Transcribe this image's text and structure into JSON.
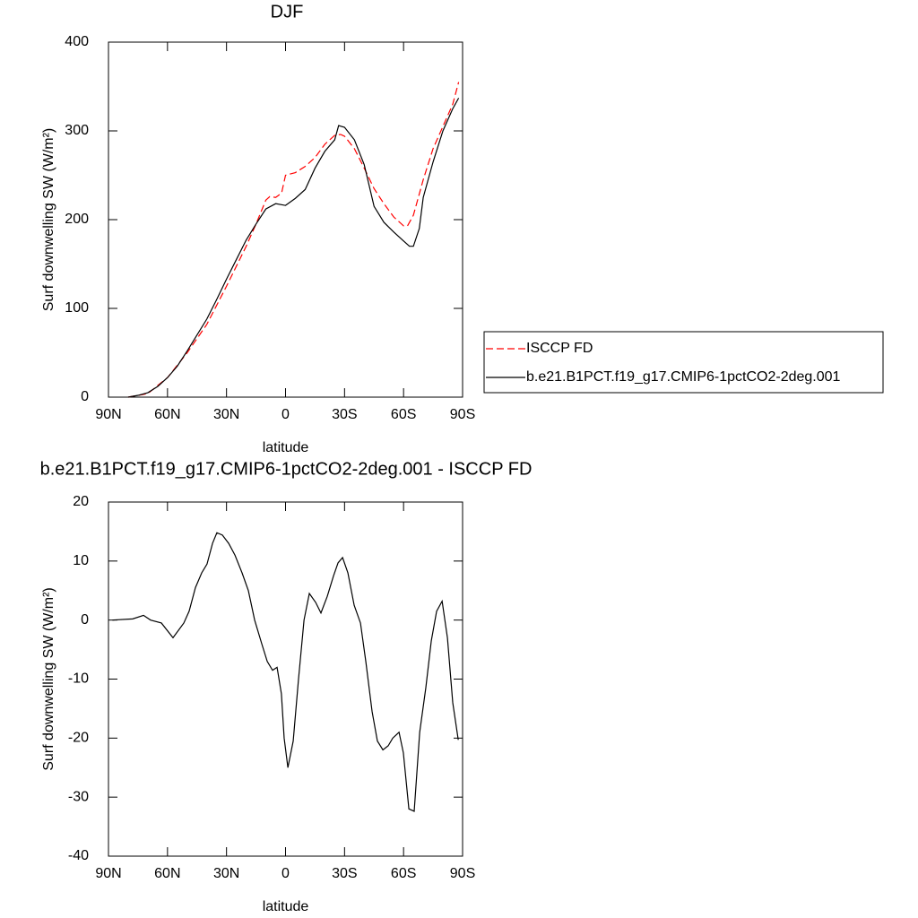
{
  "chart_data": [
    {
      "type": "line",
      "title": "DJF",
      "xlabel": "latitude",
      "ylabel": "Surf downwelling SW (W/m²)",
      "xlim": [
        90,
        -90
      ],
      "ylim": [
        0,
        400
      ],
      "xticks": [
        {
          "value": 90,
          "label": "90N"
        },
        {
          "value": 60,
          "label": "60N"
        },
        {
          "value": 30,
          "label": "30N"
        },
        0,
        {
          "value": -30,
          "label": "30S"
        },
        {
          "value": -60,
          "label": "60S"
        },
        {
          "value": -90,
          "label": "90S"
        }
      ],
      "yticks": [
        0,
        100,
        200,
        300,
        400
      ],
      "legend": "right",
      "series": [
        {
          "name": "ISCCP FD",
          "color": "#ff0000",
          "style": "dashed",
          "x": [
            80,
            70,
            60,
            50,
            40,
            30,
            20,
            15,
            10,
            8,
            5,
            2,
            0,
            -5,
            -10,
            -15,
            -20,
            -25,
            -28,
            -30,
            -35,
            -40,
            -45,
            -50,
            -55,
            -60,
            -62,
            -65,
            -70,
            -75,
            -80,
            -85,
            -88
          ],
          "values": [
            0,
            4,
            22,
            50,
            82,
            125,
            170,
            195,
            222,
            226,
            225,
            230,
            250,
            253,
            260,
            270,
            285,
            295,
            296,
            294,
            280,
            258,
            235,
            218,
            203,
            193,
            193,
            205,
            245,
            280,
            305,
            330,
            355
          ]
        },
        {
          "name": "b.e21.B1PCT.f19_g17.CMIP6-1pctCO2-2deg.001",
          "color": "#000000",
          "style": "solid",
          "x": [
            80,
            75,
            70,
            65,
            60,
            55,
            50,
            45,
            40,
            35,
            30,
            25,
            20,
            15,
            10,
            5,
            0,
            -5,
            -10,
            -15,
            -20,
            -25,
            -27,
            -30,
            -35,
            -40,
            -45,
            -50,
            -55,
            -60,
            -63,
            -65,
            -68,
            -70,
            -75,
            -80,
            -85,
            -88
          ],
          "values": [
            0,
            2,
            5,
            12,
            22,
            35,
            52,
            70,
            88,
            110,
            133,
            155,
            177,
            195,
            212,
            218,
            216,
            224,
            234,
            258,
            277,
            290,
            306,
            304,
            290,
            262,
            215,
            197,
            186,
            176,
            170,
            170,
            190,
            225,
            265,
            300,
            325,
            337
          ]
        }
      ]
    },
    {
      "type": "line",
      "title": "b.e21.B1PCT.f19_g17.CMIP6-1pctCO2-2deg.001 - ISCCP FD",
      "xlabel": "latitude",
      "ylabel": "Surf downwelling SW (W/m²)",
      "xlim": [
        90,
        -90
      ],
      "ylim": [
        -40,
        20
      ],
      "xticks": [
        {
          "value": 90,
          "label": "90N"
        },
        {
          "value": 60,
          "label": "60N"
        },
        {
          "value": 30,
          "label": "30N"
        },
        0,
        {
          "value": -30,
          "label": "30S"
        },
        {
          "value": -60,
          "label": "60S"
        },
        {
          "value": -90,
          "label": "90S"
        }
      ],
      "yticks": [
        -40,
        -30,
        -20,
        -10,
        0,
        10,
        20
      ],
      "series": [
        {
          "color": "#000000",
          "style": "solid",
          "x": [
            88,
            77.7,
            72.2,
            68.6,
            63.1,
            57.2,
            51.7,
            49,
            45.8,
            42.6,
            39.9,
            37.1,
            34.9,
            32.1,
            28.9,
            25.7,
            22.1,
            18.9,
            15.7,
            12.1,
            9.3,
            6.6,
            4.3,
            2.1,
            0.7,
            -1.2,
            -3.9,
            -6.6,
            -9.4,
            -12.1,
            -15.3,
            -18,
            -21.2,
            -24.4,
            -26.7,
            -29,
            -31.7,
            -34.9,
            -38.1,
            -40.8,
            -44,
            -46.7,
            -49.5,
            -52.2,
            -54.5,
            -57.7,
            -59.9,
            -62.7,
            -65.4,
            -68.2,
            -71.3,
            -74.1,
            -76.8,
            -79.6,
            -82.3,
            -85,
            -87.8
          ],
          "values": [
            0,
            0.2,
            0.8,
            0,
            -0.5,
            -3,
            -0.5,
            1.5,
            5.5,
            8,
            9.5,
            13,
            14.8,
            14.4,
            13,
            11,
            8,
            5,
            0,
            -4,
            -7,
            -8.5,
            -8,
            -12.5,
            -20,
            -25,
            -20.5,
            -10,
            0,
            4.5,
            3,
            1.2,
            4,
            7.5,
            9.7,
            10.6,
            8,
            2.5,
            -0.5,
            -7,
            -15.5,
            -20.5,
            -22,
            -21.3,
            -20,
            -19,
            -22.5,
            -32,
            -32.4,
            -19,
            -11.5,
            -3.5,
            1.5,
            3.2,
            -3,
            -14,
            -20.3
          ]
        }
      ]
    }
  ]
}
